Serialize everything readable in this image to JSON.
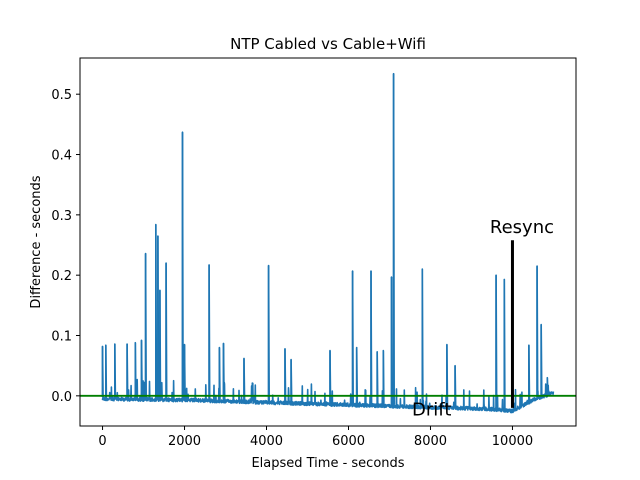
{
  "chart_data": {
    "type": "line",
    "title": "NTP Cabled vs Cable+Wifi",
    "xlabel": "Elapsed Time - seconds",
    "ylabel": "Difference - seconds",
    "xlim": [
      -550,
      11550
    ],
    "ylim": [
      -0.05,
      0.56
    ],
    "xticks": [
      0,
      2000,
      4000,
      6000,
      8000,
      10000
    ],
    "yticks": [
      0.0,
      0.1,
      0.2,
      0.3,
      0.4,
      0.5
    ],
    "xtick_labels": [
      "0",
      "2000",
      "4000",
      "6000",
      "8000",
      "10000"
    ],
    "ytick_labels": [
      "0.0",
      "0.1",
      "0.2",
      "0.3",
      "0.4",
      "0.5"
    ],
    "grid": false,
    "series": [
      {
        "color": "#1f77b4",
        "baseline": {
          "x": [
            0,
            2000,
            4000,
            6000,
            8000,
            9500,
            10000,
            10500,
            11000
          ],
          "y": [
            -0.002,
            -0.004,
            -0.008,
            -0.012,
            -0.016,
            -0.019,
            -0.022,
            -0.004,
            0.008
          ]
        },
        "spikes": [
          {
            "x": 0,
            "y": 0.082
          },
          {
            "x": 80,
            "y": 0.084
          },
          {
            "x": 300,
            "y": 0.086
          },
          {
            "x": 600,
            "y": 0.086
          },
          {
            "x": 800,
            "y": 0.088
          },
          {
            "x": 950,
            "y": 0.092
          },
          {
            "x": 1050,
            "y": 0.236
          },
          {
            "x": 1300,
            "y": 0.284
          },
          {
            "x": 1350,
            "y": 0.265
          },
          {
            "x": 1400,
            "y": 0.175
          },
          {
            "x": 1550,
            "y": 0.22
          },
          {
            "x": 1950,
            "y": 0.437
          },
          {
            "x": 2000,
            "y": 0.085
          },
          {
            "x": 2600,
            "y": 0.217
          },
          {
            "x": 2850,
            "y": 0.08
          },
          {
            "x": 2950,
            "y": 0.087
          },
          {
            "x": 3450,
            "y": 0.062
          },
          {
            "x": 4050,
            "y": 0.216
          },
          {
            "x": 4450,
            "y": 0.078
          },
          {
            "x": 4600,
            "y": 0.06
          },
          {
            "x": 5550,
            "y": 0.075
          },
          {
            "x": 6100,
            "y": 0.207
          },
          {
            "x": 6200,
            "y": 0.08
          },
          {
            "x": 6550,
            "y": 0.207
          },
          {
            "x": 6700,
            "y": 0.073
          },
          {
            "x": 6850,
            "y": 0.075
          },
          {
            "x": 7050,
            "y": 0.197
          },
          {
            "x": 7100,
            "y": 0.534
          },
          {
            "x": 7800,
            "y": 0.21
          },
          {
            "x": 8400,
            "y": 0.085
          },
          {
            "x": 8600,
            "y": 0.05
          },
          {
            "x": 9600,
            "y": 0.2
          },
          {
            "x": 9800,
            "y": 0.193
          },
          {
            "x": 10400,
            "y": 0.084
          },
          {
            "x": 10600,
            "y": 0.215
          },
          {
            "x": 10700,
            "y": 0.118
          },
          {
            "x": 10850,
            "y": 0.03
          }
        ]
      },
      {
        "color": "#007f00",
        "x": [
          -550,
          11550
        ],
        "y": [
          0.0,
          0.0
        ]
      }
    ],
    "annotations": [
      {
        "text": "Resync",
        "x": 9450,
        "y": 0.27
      },
      {
        "text": "Drift",
        "x": 7550,
        "y": -0.033
      }
    ],
    "marker_line": {
      "x": 10000,
      "y": [
        -0.02,
        0.258
      ],
      "color": "#000000"
    }
  }
}
